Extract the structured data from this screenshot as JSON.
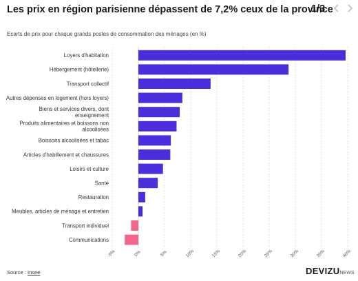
{
  "header": {
    "title": "Les prix en région parisienne dépassent de 7,2% ceux de la province",
    "pager": "1/3"
  },
  "colors": {
    "positive": "#4b2ddc",
    "negative": "#f2668b",
    "grid": "#d0d0d0",
    "zero_line": "#bbbbbb"
  },
  "icons": {
    "prev": "chevron-left-icon",
    "next": "chevron-right-icon"
  },
  "chart_data": {
    "type": "bar",
    "orientation": "horizontal",
    "title": "Les prix en région parisienne dépassent de 7,2% ceux de la province",
    "subtitle": "Ecarts de prix pour chaque grands postes de consommation des ménages (en %)",
    "xlabel": "",
    "ylabel": "",
    "xlim": [
      -5,
      40
    ],
    "xticks": [
      "-5%",
      "0%",
      "5%",
      "10%",
      "15%",
      "20%",
      "25%",
      "30%",
      "35%",
      "40%"
    ],
    "xtick_values": [
      -5,
      0,
      5,
      10,
      15,
      20,
      25,
      30,
      35,
      40
    ],
    "grid": true,
    "categories": [
      [
        "Loyers d'habitation"
      ],
      [
        "Hébergement (hôtellerie)"
      ],
      [
        "Transport collectif"
      ],
      [
        "Autres dépenses en logement (hors loyers)"
      ],
      [
        "Biens et services divers, dont",
        "enseignement"
      ],
      [
        "Produits alimentaires et boissons non",
        "alcoolisées"
      ],
      [
        "Boissons alcoolisées et tabac"
      ],
      [
        "Articles d'habillement et chaussures"
      ],
      [
        "Loisirs et culture"
      ],
      [
        "Santé"
      ],
      [
        "Restauration"
      ],
      [
        "Meubles, articles de ménage et entretien"
      ],
      [
        "Transport individuel"
      ],
      [
        "Communications"
      ]
    ],
    "values": [
      39.6,
      28.7,
      13.8,
      8.4,
      7.9,
      7.3,
      6.2,
      6.1,
      4.7,
      3.7,
      1.3,
      0.8,
      -1.4,
      -2.6
    ]
  },
  "footer": {
    "source_prefix": "Source : ",
    "source_link": "Insee",
    "logo": "DEVIZU",
    "logo_sub": "NEWS"
  }
}
